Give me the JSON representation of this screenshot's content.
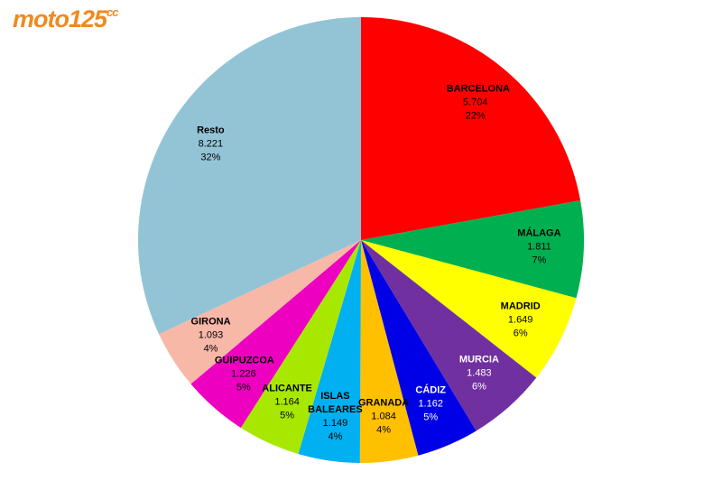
{
  "logo": {
    "name": "moto125",
    "suffix": "cc"
  },
  "chart_data": {
    "type": "pie",
    "categories": [
      "BARCELONA",
      "MÁLAGA",
      "MADRID",
      "MURCIA",
      "CÁDIZ",
      "GRANADA",
      "ISLAS BALEARES",
      "ALICANTE",
      "GUIPUZCOA",
      "GIRONA",
      "Resto"
    ],
    "values": [
      5704,
      1811,
      1649,
      1483,
      1162,
      1084,
      1149,
      1164,
      1226,
      1093,
      8221
    ],
    "value_labels": [
      "5.704",
      "1.811",
      "1.649",
      "1.483",
      "1.162",
      "1.084",
      "1.149",
      "1.164",
      "1.226",
      "1.093",
      "8.221"
    ],
    "percent_labels": [
      "22%",
      "7%",
      "6%",
      "6%",
      "5%",
      "4%",
      "4%",
      "5%",
      "5%",
      "4%",
      "32%"
    ],
    "colors": [
      "#ff0000",
      "#00b050",
      "#ffff00",
      "#7030a0",
      "#0000e6",
      "#ffc000",
      "#00b0f0",
      "#a8e800",
      "#ee00c0",
      "#f8b8a8",
      "#93c4d6"
    ],
    "label_colors": [
      "#000000",
      "#000000",
      "#000000",
      "#ffffff",
      "#ffffff",
      "#000000",
      "#000000",
      "#000000",
      "#000000",
      "#000000",
      "#000000"
    ]
  }
}
